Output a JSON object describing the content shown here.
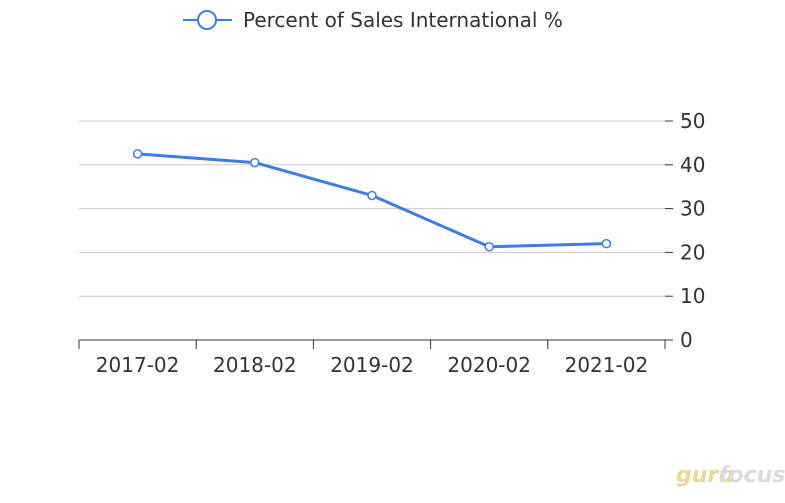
{
  "chart_data": {
    "type": "line",
    "title": "",
    "xlabel": "",
    "ylabel": "",
    "categories": [
      "2017-02",
      "2018-02",
      "2019-02",
      "2020-02",
      "2021-02"
    ],
    "series": [
      {
        "name": "Percent of Sales International %",
        "values": [
          42.5,
          40.5,
          33.0,
          21.3,
          22.0
        ],
        "color": "#3b7ee8"
      }
    ],
    "ylim": [
      0,
      50
    ],
    "yticks": [
      0,
      10,
      20,
      30,
      40,
      50
    ],
    "y_axis_position": "right",
    "grid": true,
    "legend_position": "top-center"
  },
  "watermark": {
    "part1": "guru",
    "part2": "focus"
  }
}
